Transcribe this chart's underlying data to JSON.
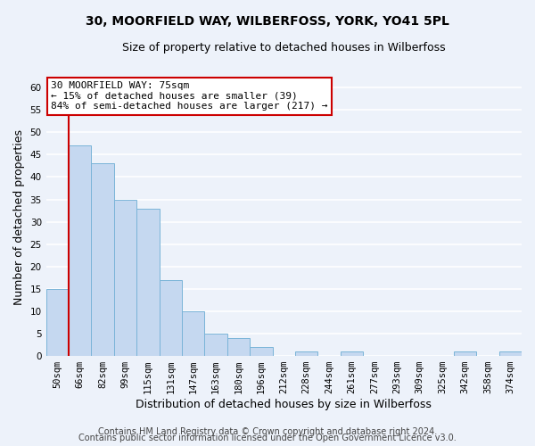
{
  "title": "30, MOORFIELD WAY, WILBERFOSS, YORK, YO41 5PL",
  "subtitle": "Size of property relative to detached houses in Wilberfoss",
  "xlabel": "Distribution of detached houses by size in Wilberfoss",
  "ylabel": "Number of detached properties",
  "bin_labels": [
    "50sqm",
    "66sqm",
    "82sqm",
    "99sqm",
    "115sqm",
    "131sqm",
    "147sqm",
    "163sqm",
    "180sqm",
    "196sqm",
    "212sqm",
    "228sqm",
    "244sqm",
    "261sqm",
    "277sqm",
    "293sqm",
    "309sqm",
    "325sqm",
    "342sqm",
    "358sqm",
    "374sqm"
  ],
  "bar_values": [
    15,
    47,
    43,
    35,
    33,
    17,
    10,
    5,
    4,
    2,
    0,
    1,
    0,
    1,
    0,
    0,
    0,
    0,
    1,
    0,
    1
  ],
  "bar_color": "#c5d8f0",
  "bar_edge_color": "#7ab4d8",
  "vline_x": 1.0,
  "vline_color": "#cc0000",
  "ylim": [
    0,
    62
  ],
  "yticks": [
    0,
    5,
    10,
    15,
    20,
    25,
    30,
    35,
    40,
    45,
    50,
    55,
    60
  ],
  "annotation_title": "30 MOORFIELD WAY: 75sqm",
  "annotation_line2": "← 15% of detached houses are smaller (39)",
  "annotation_line3": "84% of semi-detached houses are larger (217) →",
  "annotation_box_color": "#cc0000",
  "footer1": "Contains HM Land Registry data © Crown copyright and database right 2024.",
  "footer2": "Contains public sector information licensed under the Open Government Licence v3.0.",
  "background_color": "#edf2fa",
  "grid_color": "#ffffff",
  "title_fontsize": 10,
  "subtitle_fontsize": 9,
  "axis_label_fontsize": 9,
  "tick_fontsize": 7.5,
  "annotation_fontsize": 8,
  "footer_fontsize": 7
}
